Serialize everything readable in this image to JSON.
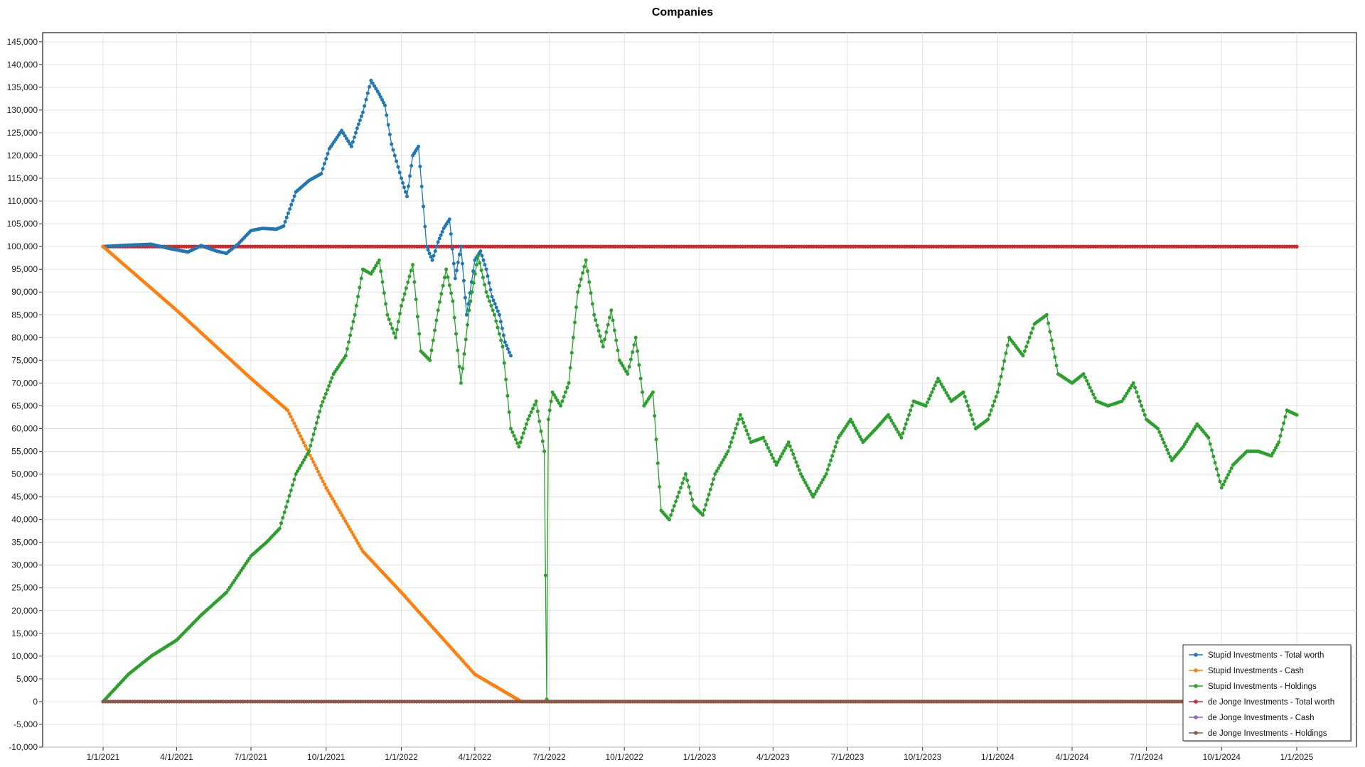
{
  "chart_data": {
    "type": "line",
    "title": "Companies",
    "xlabel": "",
    "ylabel": "",
    "ylim": [
      -10000,
      147000
    ],
    "x_ticks": [
      "1/1/2021",
      "4/1/2021",
      "7/1/2021",
      "10/1/2021",
      "1/1/2022",
      "4/1/2022",
      "7/1/2022",
      "10/1/2022",
      "1/1/2023",
      "4/1/2023",
      "7/1/2023",
      "10/1/2023",
      "1/1/2024",
      "4/1/2024",
      "7/1/2024",
      "10/1/2024",
      "1/1/2025"
    ],
    "y_ticks": [
      "145,000",
      "140,000",
      "135,000",
      "130,000",
      "125,000",
      "120,000",
      "115,000",
      "110,000",
      "105,000",
      "100,000",
      "95,000",
      "90,000",
      "85,000",
      "80,000",
      "75,000",
      "70,000",
      "65,000",
      "60,000",
      "55,000",
      "50,000",
      "45,000",
      "40,000",
      "35,000",
      "30,000",
      "25,000",
      "20,000",
      "15,000",
      "10,000",
      "5,000",
      "0",
      "-5,000",
      "-10,000"
    ],
    "y_tick_values": [
      145000,
      140000,
      135000,
      130000,
      125000,
      120000,
      115000,
      110000,
      105000,
      100000,
      95000,
      90000,
      85000,
      80000,
      75000,
      70000,
      65000,
      60000,
      55000,
      50000,
      45000,
      40000,
      35000,
      30000,
      25000,
      20000,
      15000,
      10000,
      5000,
      0,
      -5000,
      -10000
    ],
    "grid": true,
    "legend_position": "bottom-right",
    "series": [
      {
        "name": "Stupid Investments - Total worth",
        "color": "#1f77b4",
        "x": [
          "2021-01-01",
          "2021-02-01",
          "2021-03-01",
          "2021-03-25",
          "2021-04-15",
          "2021-05-01",
          "2021-05-20",
          "2021-06-01",
          "2021-06-15",
          "2021-07-01",
          "2021-07-15",
          "2021-08-01",
          "2021-08-10",
          "2021-08-25",
          "2021-09-10",
          "2021-09-25",
          "2021-10-05",
          "2021-10-20",
          "2021-11-01",
          "2021-11-08",
          "2021-11-15",
          "2021-11-25",
          "2021-12-05",
          "2021-12-12",
          "2021-12-20",
          "2022-01-01",
          "2022-01-08",
          "2022-01-15",
          "2022-01-22",
          "2022-02-01",
          "2022-02-08",
          "2022-02-15",
          "2022-02-22",
          "2022-03-01",
          "2022-03-08",
          "2022-03-15",
          "2022-03-22",
          "2022-04-01",
          "2022-04-08",
          "2022-04-15",
          "2022-04-22",
          "2022-05-01",
          "2022-05-08",
          "2022-05-15"
        ],
        "y": [
          100000,
          100300,
          100500,
          99500,
          98800,
          100200,
          99000,
          98500,
          100500,
          103500,
          104000,
          103800,
          104500,
          112000,
          114500,
          116000,
          121500,
          125500,
          122000,
          126000,
          129500,
          136500,
          133500,
          131000,
          122500,
          115000,
          111000,
          120000,
          122000,
          100000,
          97000,
          101000,
          104000,
          106000,
          93000,
          100000,
          85000,
          97000,
          99000,
          95000,
          89000,
          85000,
          79000,
          76000
        ]
      },
      {
        "name": "Stupid Investments - Cash",
        "color": "#ff7f0e",
        "x": [
          "2021-01-01",
          "2021-04-01",
          "2021-07-01",
          "2021-08-15",
          "2021-10-01",
          "2021-11-15",
          "2022-01-01",
          "2022-04-01",
          "2022-05-28",
          "2025-01-01"
        ],
        "y": [
          100000,
          86000,
          71000,
          64000,
          47000,
          33000,
          24000,
          6000,
          0,
          0
        ]
      },
      {
        "name": "Stupid Investments - Holdings",
        "color": "#2ca02c",
        "x": [
          "2021-01-01",
          "2021-02-01",
          "2021-03-01",
          "2021-04-01",
          "2021-05-01",
          "2021-06-01",
          "2021-07-01",
          "2021-07-20",
          "2021-08-05",
          "2021-08-25",
          "2021-09-10",
          "2021-09-25",
          "2021-10-10",
          "2021-10-25",
          "2021-11-05",
          "2021-11-15",
          "2021-11-25",
          "2021-12-05",
          "2021-12-15",
          "2021-12-25",
          "2022-01-01",
          "2022-01-15",
          "2022-01-25",
          "2022-02-05",
          "2022-02-15",
          "2022-02-25",
          "2022-03-05",
          "2022-03-15",
          "2022-03-25",
          "2022-04-05",
          "2022-04-15",
          "2022-04-25",
          "2022-05-05",
          "2022-05-15",
          "2022-05-25",
          "2022-06-05",
          "2022-06-15",
          "2022-06-25",
          "2022-06-28",
          "2022-06-30",
          "2022-07-05",
          "2022-07-15",
          "2022-07-25",
          "2022-08-05",
          "2022-08-15",
          "2022-08-25",
          "2022-09-05",
          "2022-09-15",
          "2022-09-25",
          "2022-10-05",
          "2022-10-15",
          "2022-10-25",
          "2022-11-05",
          "2022-11-15",
          "2022-11-25",
          "2022-12-05",
          "2022-12-15",
          "2022-12-25",
          "2023-01-05",
          "2023-01-20",
          "2023-02-05",
          "2023-02-20",
          "2023-03-05",
          "2023-03-20",
          "2023-04-05",
          "2023-04-20",
          "2023-05-05",
          "2023-05-20",
          "2023-06-05",
          "2023-06-20",
          "2023-07-05",
          "2023-07-20",
          "2023-08-05",
          "2023-08-20",
          "2023-09-05",
          "2023-09-20",
          "2023-10-05",
          "2023-10-20",
          "2023-11-05",
          "2023-11-20",
          "2023-12-05",
          "2023-12-20",
          "2024-01-01",
          "2024-01-15",
          "2024-02-01",
          "2024-02-15",
          "2024-03-01",
          "2024-03-15",
          "2024-04-01",
          "2024-04-15",
          "2024-05-01",
          "2024-05-15",
          "2024-06-01",
          "2024-06-15",
          "2024-07-01",
          "2024-07-15",
          "2024-08-01",
          "2024-08-15",
          "2024-09-01",
          "2024-09-15",
          "2024-10-01",
          "2024-10-15",
          "2024-11-01",
          "2024-11-15",
          "2024-12-01",
          "2024-12-10",
          "2024-12-20",
          "2025-01-01"
        ],
        "y": [
          0,
          6000,
          10000,
          13500,
          19000,
          24000,
          32000,
          35000,
          38000,
          50000,
          55000,
          65000,
          72000,
          76000,
          85000,
          95000,
          94000,
          97000,
          85000,
          80000,
          87000,
          96000,
          77000,
          75000,
          86000,
          95000,
          88000,
          70000,
          86000,
          98000,
          90000,
          85000,
          78000,
          60000,
          56000,
          62000,
          66000,
          55000,
          500,
          62000,
          68000,
          65000,
          70000,
          90000,
          97000,
          85000,
          78000,
          86000,
          75000,
          72000,
          80000,
          65000,
          68000,
          42000,
          40000,
          45000,
          50000,
          43000,
          41000,
          50000,
          55000,
          63000,
          57000,
          58000,
          52000,
          57000,
          50000,
          45000,
          50000,
          58000,
          62000,
          57000,
          60000,
          63000,
          58000,
          66000,
          65000,
          71000,
          66000,
          68000,
          60000,
          62000,
          68000,
          80000,
          76000,
          83000,
          85000,
          72000,
          70000,
          72000,
          66000,
          65000,
          66000,
          70000,
          62000,
          60000,
          53000,
          56000,
          61000,
          58000,
          47000,
          52000,
          55000,
          55000,
          54000,
          57000,
          64000,
          63000
        ]
      },
      {
        "name": "de Jonge Investments - Total worth",
        "color": "#d62728",
        "x": [
          "2021-01-01",
          "2025-01-01"
        ],
        "y": [
          100000,
          100000
        ]
      },
      {
        "name": "de Jonge Investments - Cash",
        "color": "#9467bd",
        "x": [
          "2021-01-01",
          "2025-01-01"
        ],
        "y": [
          100000,
          100000
        ]
      },
      {
        "name": "de Jonge Investments - Holdings",
        "color": "#8c564b",
        "x": [
          "2021-01-01",
          "2025-01-01"
        ],
        "y": [
          0,
          0
        ]
      }
    ]
  }
}
